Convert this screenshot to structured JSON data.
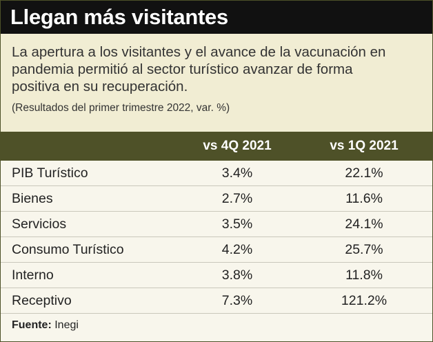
{
  "header": {
    "title": "Llegan más visitantes",
    "subtitle": "La apertura a los visitantes y el avance de la vacunación en pandemia permitió al sector turístico avanzar de forma positiva en su recuperación.",
    "note": "(Resultados del primer trimestre 2022, var. %)"
  },
  "table": {
    "columns": [
      "vs 4Q 2021",
      "vs 1Q 2021"
    ],
    "rows": [
      [
        "PIB Turístico",
        "3.4%",
        "22.1%"
      ],
      [
        "Bienes",
        "2.7%",
        "11.6%"
      ],
      [
        "Servicios",
        "3.5%",
        "24.1%"
      ],
      [
        "Consumo Turístico",
        "4.2%",
        "25.7%"
      ],
      [
        "Interno",
        "3.8%",
        "11.8%"
      ],
      [
        "Receptivo",
        "7.3%",
        "121.2%"
      ]
    ]
  },
  "source": {
    "label": "Fuente:",
    "text": "Inegi"
  }
}
